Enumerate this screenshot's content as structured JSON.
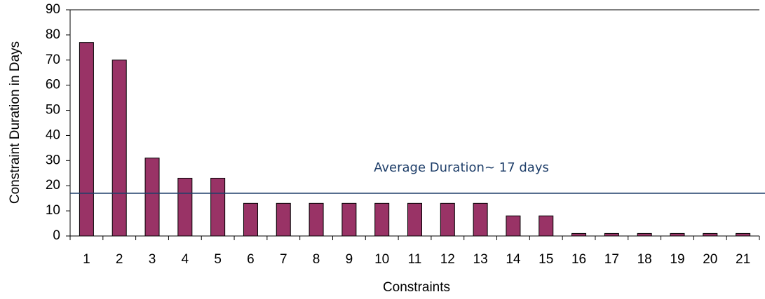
{
  "chart_data": {
    "type": "bar",
    "x_label": "Constraints",
    "y_label": "Constraint Duration in Days",
    "categories": [
      "1",
      "2",
      "3",
      "4",
      "5",
      "6",
      "7",
      "8",
      "9",
      "10",
      "11",
      "12",
      "13",
      "14",
      "15",
      "16",
      "17",
      "18",
      "19",
      "20",
      "21"
    ],
    "values": [
      77,
      70,
      31,
      23,
      23,
      13,
      13,
      13,
      13,
      13,
      13,
      13,
      13,
      8,
      8,
      1,
      1,
      1,
      1,
      1,
      1
    ],
    "color": "#993366",
    "ylim": [
      0,
      90
    ],
    "yticks": [
      0,
      10,
      20,
      30,
      40,
      50,
      60,
      70,
      80,
      90
    ],
    "average_line": {
      "value": 17,
      "label": "Average Duration~ 17 days",
      "color": "#1f3f6a"
    }
  }
}
